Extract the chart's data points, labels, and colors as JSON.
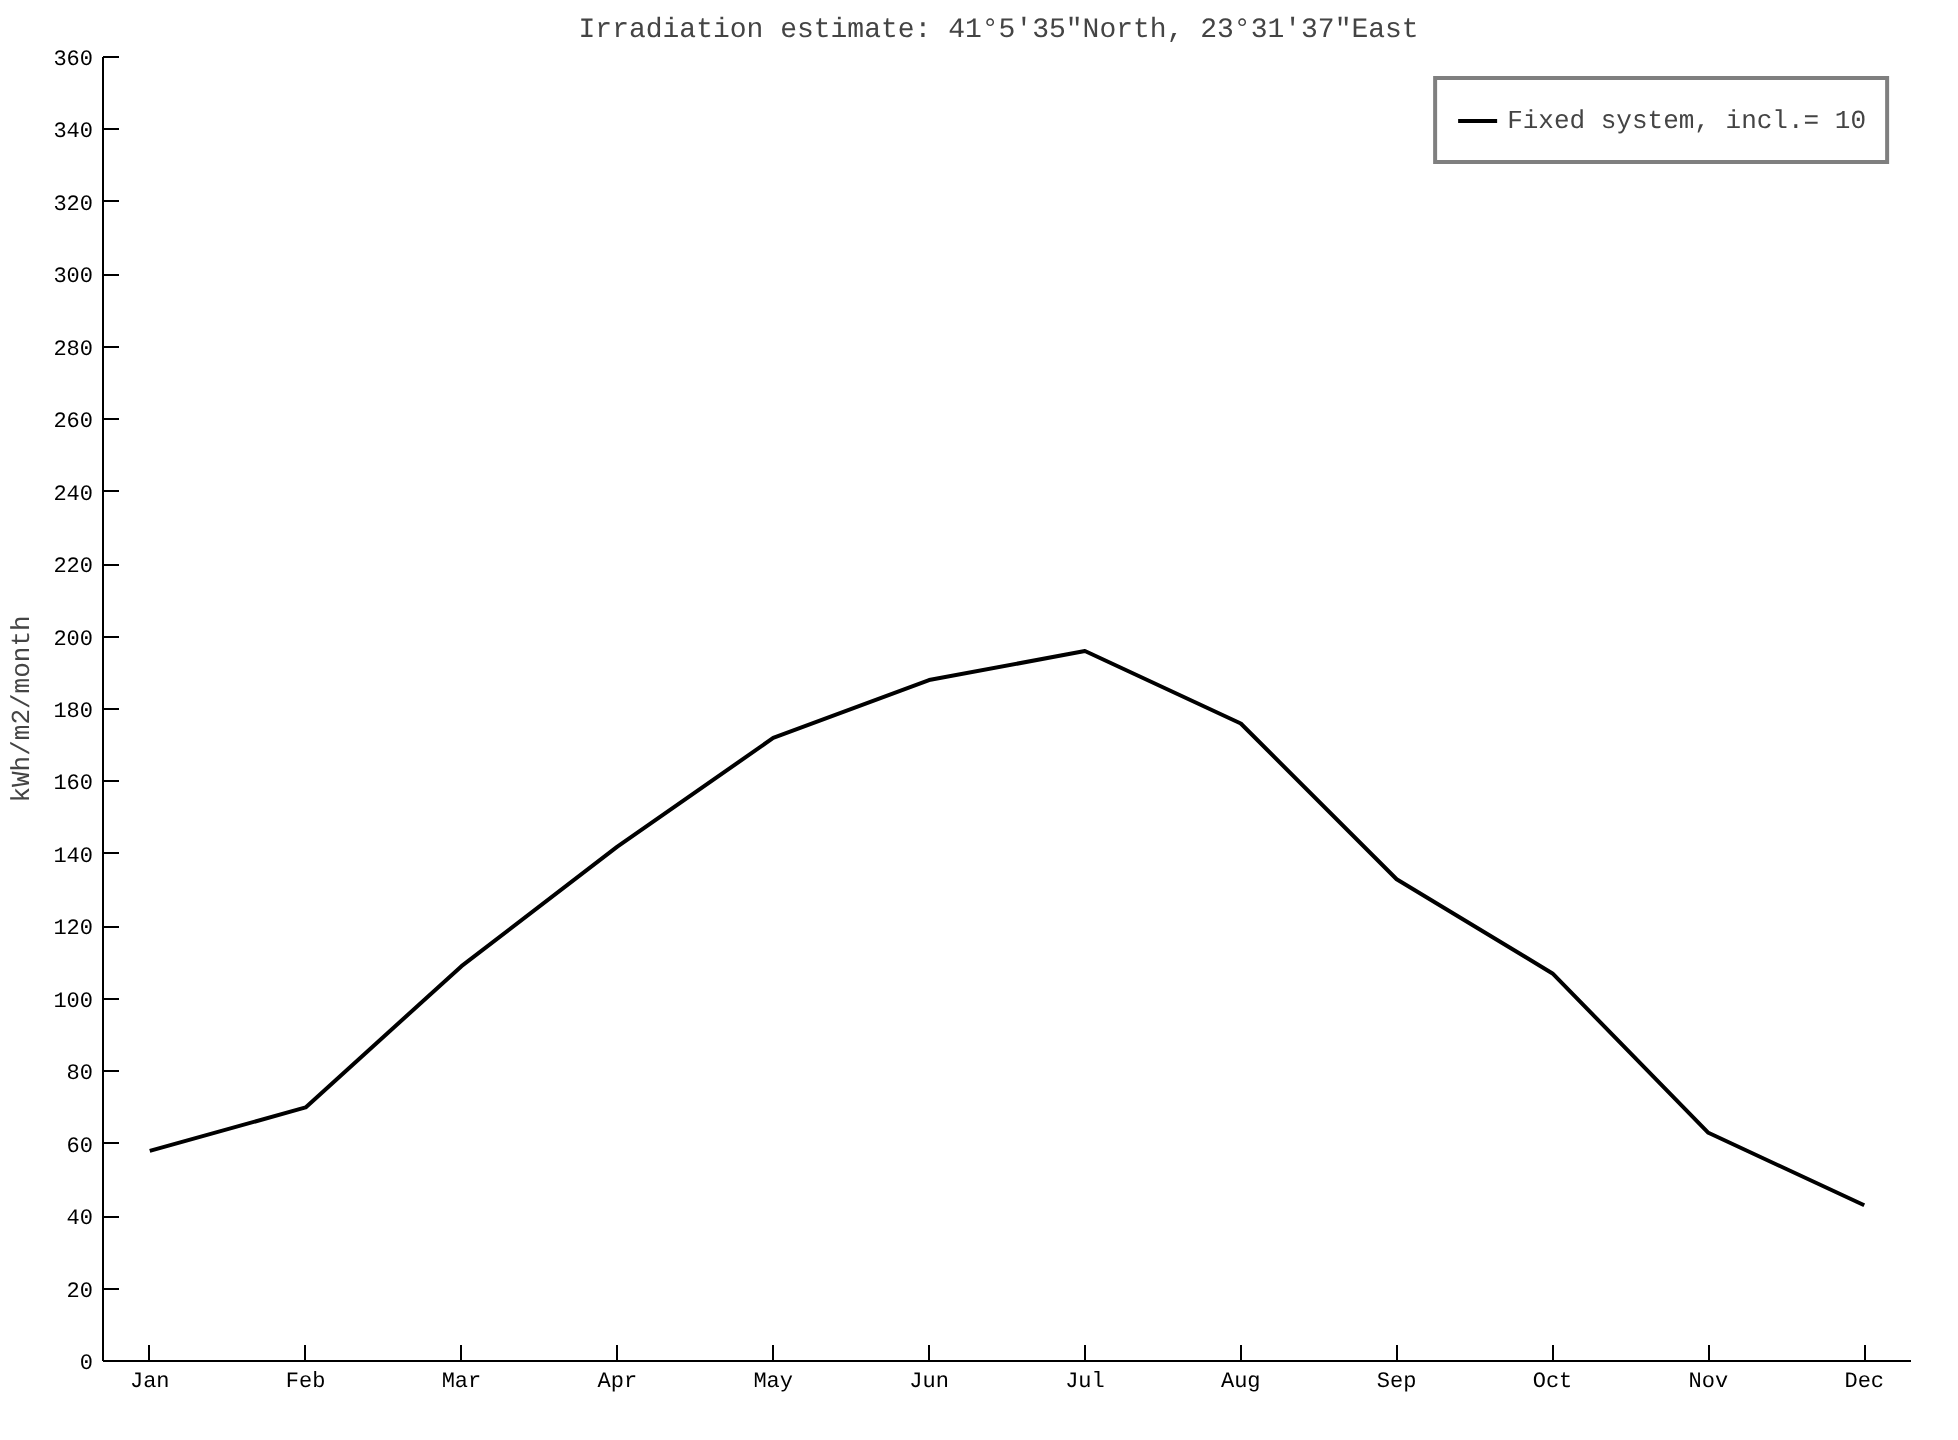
{
  "chart_data": {
    "type": "line",
    "title": "Irradiation estimate:  41°5'35\"North, 23°31'37\"East",
    "ylabel": "kWh/m2/month",
    "categories": [
      "Jan",
      "Feb",
      "Mar",
      "Apr",
      "May",
      "Jun",
      "Jul",
      "Aug",
      "Sep",
      "Oct",
      "Nov",
      "Dec"
    ],
    "series": [
      {
        "name": "Fixed system, incl.= 10",
        "color": "#000000",
        "values": [
          58,
          70,
          109,
          142,
          172,
          188,
          196,
          176,
          133,
          107,
          63,
          43
        ]
      }
    ],
    "ylim": [
      0,
      360
    ],
    "yticks": [
      0,
      20,
      40,
      60,
      80,
      100,
      120,
      140,
      160,
      180,
      200,
      220,
      240,
      260,
      280,
      300,
      320,
      340,
      360
    ],
    "grid": false,
    "legend": "top right",
    "marker": "none",
    "line_style": "solid"
  }
}
